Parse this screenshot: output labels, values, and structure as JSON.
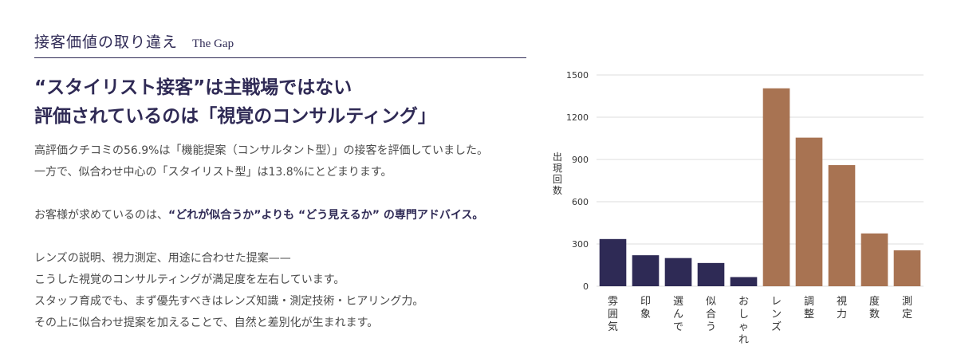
{
  "header": {
    "title": "接客価値の取り違え",
    "subtitle": "The Gap"
  },
  "headline": {
    "line1": "“スタイリスト接客”は主戦場ではない",
    "line2": "評価されているのは「視覚のコンサルティング」"
  },
  "body": {
    "p1": "高評価クチコミの56.9%は「機能提案（コンサルタント型）」の接客を評価していました。",
    "p2": "一方で、似合わせ中心の「スタイリスト型」は13.8%にとどまります。",
    "p3_pre": "お客様が求めているのは、",
    "p3_bold": "“どれが似合うか”よりも “どう見えるか” の専門アドバイス。",
    "p4": "レンズの説明、視力測定、用途に合わせた提案——",
    "p5": "こうした視覚のコンサルティングが満足度を左右しています。",
    "p6": "スタッフ育成でも、まず優先すべきはレンズ知識・測定技術・ヒアリング力。",
    "p7": "その上に似合わせ提案を加えることで、自然と差別化が生まれます。"
  },
  "chart_data": {
    "type": "bar",
    "ylabel": "出現回数",
    "ylim": [
      0,
      1500
    ],
    "yticks": [
      0,
      300,
      600,
      900,
      1200,
      1500
    ],
    "grid": true,
    "categories": [
      "雰囲気",
      "印象",
      "選んで",
      "似合う",
      "おしゃれ",
      "レンズ",
      "調整",
      "視力",
      "度数",
      "測定"
    ],
    "values": [
      335,
      220,
      200,
      165,
      65,
      1405,
      1055,
      860,
      375,
      255
    ],
    "colors": [
      "#2e2a55",
      "#2e2a55",
      "#2e2a55",
      "#2e2a55",
      "#2e2a55",
      "#a87352",
      "#a87352",
      "#a87352",
      "#a87352",
      "#a87352"
    ]
  }
}
